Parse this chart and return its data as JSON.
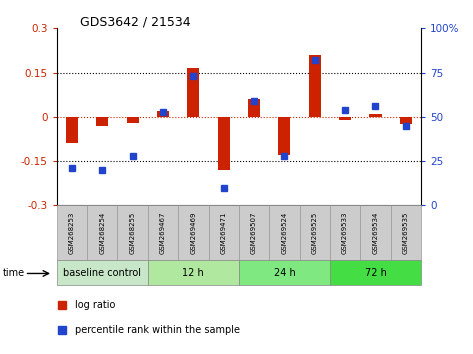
{
  "title": "GDS3642 / 21534",
  "samples": [
    "GSM268253",
    "GSM268254",
    "GSM268255",
    "GSM269467",
    "GSM269469",
    "GSM269471",
    "GSM269507",
    "GSM269524",
    "GSM269525",
    "GSM269533",
    "GSM269534",
    "GSM269535"
  ],
  "log_ratio": [
    -0.09,
    -0.03,
    -0.02,
    0.02,
    0.165,
    -0.18,
    0.06,
    -0.13,
    0.21,
    -0.01,
    0.01,
    -0.025
  ],
  "percentile_rank": [
    21,
    20,
    28,
    53,
    73,
    10,
    59,
    28,
    82,
    54,
    56,
    45
  ],
  "groups": [
    {
      "label": "baseline control",
      "start": 0,
      "end": 3,
      "color": "#c8e6c8"
    },
    {
      "label": "12 h",
      "start": 3,
      "end": 6,
      "color": "#b0e8a0"
    },
    {
      "label": "24 h",
      "start": 6,
      "end": 9,
      "color": "#80e880"
    },
    {
      "label": "72 h",
      "start": 9,
      "end": 12,
      "color": "#44dd44"
    }
  ],
  "ylim_left": [
    -0.3,
    0.3
  ],
  "ylim_right": [
    0,
    100
  ],
  "yticks_left": [
    -0.3,
    -0.15,
    0,
    0.15,
    0.3
  ],
  "yticks_right": [
    0,
    25,
    50,
    75,
    100
  ],
  "bar_color": "#cc2200",
  "square_color": "#2244cc",
  "zero_line_color": "#cc2200",
  "dotted_line_color": "#000000",
  "label_bg_color": "#cccccc",
  "label_edge_color": "#999999",
  "group_edge_color": "#888888"
}
